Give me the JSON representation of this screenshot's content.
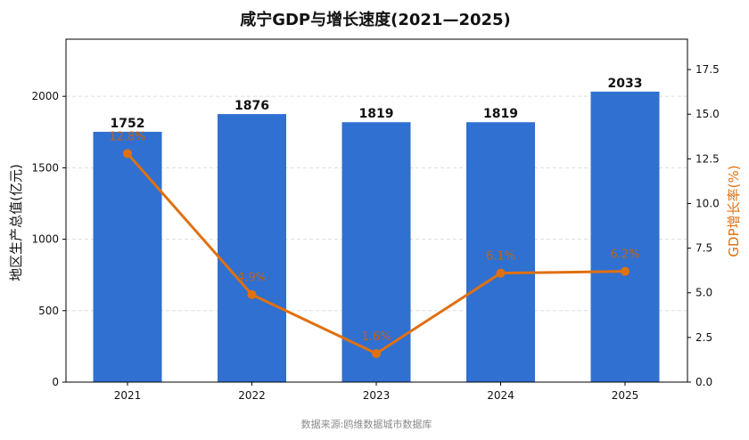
{
  "chart_data": {
    "type": "bar",
    "title": "咸宁GDP与增长速度(2021—2025)",
    "categories": [
      "2021",
      "2022",
      "2023",
      "2024",
      "2025"
    ],
    "series": [
      {
        "name": "地区生产总值(亿元)",
        "type": "bar",
        "axis": "left",
        "values": [
          1752,
          1876,
          1819,
          1819,
          2033
        ],
        "labels": [
          "1752",
          "1876",
          "1819",
          "1819",
          "2033"
        ]
      },
      {
        "name": "GDP增长率(%)",
        "type": "line",
        "axis": "right",
        "values": [
          12.8,
          4.9,
          1.6,
          6.1,
          6.2
        ],
        "labels": [
          "12.8%",
          "4.9%",
          "1.6%",
          "6.1%",
          "6.2%"
        ]
      }
    ],
    "ylabel": "地区生产总值(亿元)",
    "y2label": "GDP增长率(%)",
    "ylim": [
      0,
      2400
    ],
    "y2lim": [
      0,
      19.2
    ],
    "yticks": [
      "0",
      "500",
      "1000",
      "1500",
      "2000"
    ],
    "y2ticks": [
      "0.0",
      "2.5",
      "5.0",
      "7.5",
      "10.0",
      "12.5",
      "15.0",
      "17.5"
    ],
    "grid": "horizontal-dashed",
    "legend": "none",
    "source": "数据来源:鸥维数据城市数据库"
  },
  "colors": {
    "bar": "#3070D1",
    "line": "#E07010",
    "pct_label": "#B9651F",
    "grid": "#DDDDDD",
    "axis": "#000000"
  }
}
